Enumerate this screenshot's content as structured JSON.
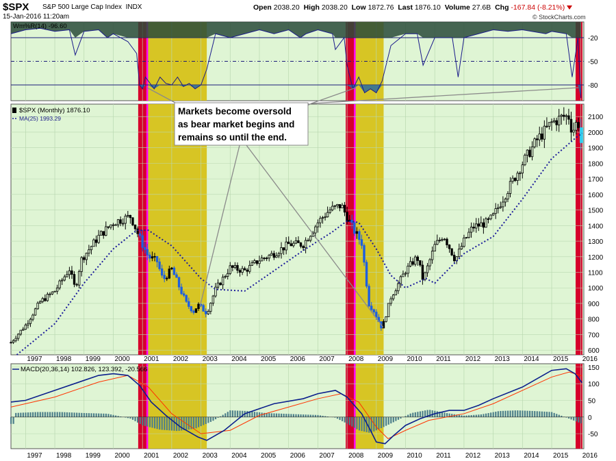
{
  "header": {
    "symbol": "$SPX",
    "name": "S&P 500 Large Cap Index",
    "exchange": "INDX",
    "date": "15-Jan-2016 11:20am",
    "open_label": "Open",
    "open": "2038.20",
    "high_label": "High",
    "high": "2038.20",
    "low_label": "Low",
    "low": "1872.76",
    "last_label": "Last",
    "last": "1876.10",
    "volume_label": "Volume",
    "volume": "27.6B",
    "chg_label": "Chg",
    "chg": "-167.84 (-8.21%)",
    "brand": "© StockCharts.com"
  },
  "colors": {
    "panel_bg": "#dff5d4",
    "bear_shade": "#d6c21a",
    "bear_marker": "#d6002b",
    "magenta": "#ff00ff",
    "ma_line": "#1a1a9a",
    "up_candle": "#000000",
    "down_candle": "#1d5fe0",
    "macd_line": "#0b1f8c",
    "signal_line": "#ff3300",
    "histogram": "#4d7f8a",
    "current_cyan": "#33ccee"
  },
  "annotation": {
    "lines": [
      "Markets become oversold",
      "as bear market begins and",
      "remains so until the end."
    ]
  },
  "chart_data": [
    {
      "type": "line",
      "panel": "Williams %R",
      "legend": "Wm%R(14) -96.60",
      "ylim": [
        -100,
        0
      ],
      "ticks": [
        -20,
        -50,
        -80
      ],
      "reference_lines": [
        -20,
        -50,
        -80
      ],
      "x": [
        1996.5,
        1997.0,
        1997.5,
        1998.0,
        1998.5,
        1998.7,
        1999.0,
        1999.5,
        1999.8,
        2000.0,
        2000.5,
        2000.8,
        2000.9,
        2001.0,
        2001.1,
        2001.2,
        2001.4,
        2001.6,
        2001.8,
        2002.0,
        2002.2,
        2002.4,
        2002.6,
        2002.8,
        2003.0,
        2003.2,
        2003.5,
        2004.0,
        2004.5,
        2005.0,
        2005.5,
        2006.0,
        2006.4,
        2006.6,
        2007.0,
        2007.5,
        2007.6,
        2007.9,
        2008.0,
        2008.2,
        2008.4,
        2008.6,
        2008.8,
        2009.0,
        2009.2,
        2009.5,
        2010.0,
        2010.4,
        2010.6,
        2011.0,
        2011.6,
        2011.8,
        2012.0,
        2012.5,
        2013.0,
        2013.5,
        2014.0,
        2014.8,
        2015.0,
        2015.5,
        2015.7,
        2015.9,
        2016.0
      ],
      "y": [
        -15,
        -10,
        -8,
        -12,
        -10,
        -42,
        -12,
        -10,
        -20,
        -15,
        -25,
        -40,
        -80,
        -85,
        -70,
        -75,
        -85,
        -70,
        -78,
        -80,
        -70,
        -82,
        -78,
        -85,
        -80,
        -60,
        -15,
        -20,
        -15,
        -10,
        -15,
        -10,
        -20,
        -15,
        -10,
        -15,
        -35,
        -20,
        -55,
        -85,
        -70,
        -90,
        -85,
        -90,
        -75,
        -30,
        -15,
        -15,
        -55,
        -20,
        -20,
        -70,
        -20,
        -15,
        -10,
        -12,
        -10,
        -15,
        -12,
        -15,
        -70,
        -20,
        -96.6
      ]
    },
    {
      "type": "bar",
      "panel": "Price (Monthly candlesticks)",
      "legend": "$SPX (Monthly) 1876.10",
      "ma_legend": "MA(25) 1993.29",
      "ylim": [
        570,
        2180
      ],
      "ticks": [
        600,
        700,
        800,
        900,
        1000,
        1100,
        1200,
        1300,
        1400,
        1500,
        1600,
        1700,
        1800,
        1900,
        2000,
        2100
      ],
      "x_ticks": [
        "1997",
        "1998",
        "1999",
        "2000",
        "2001",
        "2002",
        "2003",
        "2004",
        "2005",
        "2006",
        "2007",
        "2008",
        "2009",
        "2010",
        "2011",
        "2012",
        "2013",
        "2014",
        "2015",
        "2016"
      ],
      "xlim": [
        1996.5,
        2016.1
      ],
      "price_x": [
        1996.5,
        1997.0,
        1997.5,
        1998.0,
        1998.5,
        1998.7,
        1998.9,
        1999.5,
        2000.0,
        2000.6,
        2000.9,
        2001.2,
        2001.5,
        2001.7,
        2002.0,
        2002.5,
        2002.75,
        2002.9,
        2003.2,
        2003.5,
        2004.0,
        2004.5,
        2005.0,
        2005.5,
        2006.0,
        2006.5,
        2007.0,
        2007.4,
        2007.8,
        2008.2,
        2008.5,
        2008.75,
        2008.9,
        2009.2,
        2009.5,
        2010.0,
        2010.4,
        2010.6,
        2011.0,
        2011.3,
        2011.7,
        2012.0,
        2012.3,
        2012.8,
        2013.0,
        2013.5,
        2014.0,
        2014.5,
        2015.0,
        2015.4,
        2015.6,
        2015.7,
        2015.9,
        2016.04
      ],
      "price_y": [
        650,
        760,
        910,
        980,
        1120,
        990,
        1180,
        1330,
        1420,
        1460,
        1320,
        1200,
        1170,
        1050,
        1120,
        900,
        850,
        890,
        840,
        990,
        1130,
        1110,
        1180,
        1220,
        1280,
        1280,
        1420,
        1500,
        1530,
        1380,
        1290,
        900,
        860,
        740,
        940,
        1110,
        1200,
        1050,
        1270,
        1340,
        1180,
        1300,
        1390,
        1420,
        1460,
        1630,
        1800,
        1950,
        2060,
        2100,
        2100,
        2000,
        2080,
        1876.1
      ],
      "ma_x": [
        1996.7,
        1998.0,
        1999.0,
        2000.0,
        2000.8,
        2001.2,
        2002.0,
        2003.0,
        2003.5,
        2004.5,
        2005.5,
        2006.5,
        2007.5,
        2008.0,
        2008.4,
        2009.0,
        2009.5,
        2010.0,
        2010.7,
        2011.0,
        2012.0,
        2013.0,
        2014.0,
        2015.0,
        2015.8,
        2016.04
      ],
      "ma_y": [
        570,
        770,
        1030,
        1250,
        1370,
        1370,
        1270,
        1060,
        990,
        980,
        1110,
        1240,
        1360,
        1430,
        1420,
        1250,
        1080,
        1000,
        1060,
        1030,
        1220,
        1330,
        1570,
        1830,
        1960,
        1993.29
      ]
    },
    {
      "type": "line",
      "panel": "MACD",
      "legend": "MACD(20,36,14) 102.826, 123.392, -20.566",
      "ylim": [
        -95,
        160
      ],
      "ticks": [
        150,
        100,
        50,
        0,
        -50
      ],
      "macd_x": [
        1996.5,
        1997.0,
        1998.0,
        1999.0,
        1999.5,
        2000.0,
        2000.5,
        2000.9,
        2001.3,
        2001.8,
        2002.3,
        2002.9,
        2003.2,
        2003.8,
        2004.5,
        2005.5,
        2006.5,
        2007.0,
        2007.6,
        2008.0,
        2008.5,
        2008.8,
        2009.0,
        2009.3,
        2009.6,
        2010.0,
        2010.5,
        2011.0,
        2011.5,
        2012.0,
        2012.5,
        2013.0,
        2014.0,
        2014.8,
        2015.0,
        2015.5,
        2015.8,
        2016.04
      ],
      "macd_y": [
        45,
        50,
        80,
        110,
        125,
        130,
        125,
        95,
        45,
        5,
        -30,
        -60,
        -70,
        -40,
        10,
        40,
        55,
        70,
        80,
        60,
        10,
        -40,
        -75,
        -80,
        -55,
        -25,
        -5,
        10,
        20,
        20,
        35,
        55,
        90,
        130,
        140,
        145,
        130,
        102.826
      ],
      "signal_x": [
        1996.5,
        1998.0,
        1999.5,
        2000.5,
        2001.2,
        2002.0,
        2003.0,
        2004.0,
        2005.0,
        2006.0,
        2007.0,
        2007.8,
        2008.4,
        2009.0,
        2009.4,
        2010.0,
        2010.8,
        2012.0,
        2013.0,
        2014.0,
        2015.0,
        2015.6,
        2016.04
      ],
      "signal_y": [
        30,
        60,
        105,
        125,
        90,
        10,
        -50,
        -40,
        5,
        30,
        55,
        70,
        45,
        -30,
        -65,
        -40,
        -10,
        10,
        40,
        80,
        120,
        135,
        123.392
      ],
      "hist_x": [
        1996.6,
        1997.4,
        1998.2,
        1999.0,
        1999.8,
        2000.6,
        2001.0,
        2001.6,
        2002.2,
        2002.8,
        2003.4,
        2004.0,
        2004.6,
        2005.2,
        2005.8,
        2006.4,
        2007.0,
        2007.6,
        2008.0,
        2008.4,
        2008.8,
        2009.2,
        2009.6,
        2010.2,
        2010.8,
        2011.4,
        2012.0,
        2012.6,
        2013.2,
        2013.8,
        2014.4,
        2015.0,
        2015.6,
        2016.04
      ],
      "hist_y": [
        12,
        15,
        15,
        12,
        10,
        -5,
        -25,
        -38,
        -42,
        -35,
        -12,
        20,
        18,
        12,
        10,
        8,
        6,
        -2,
        -20,
        -40,
        -48,
        -32,
        -15,
        12,
        22,
        12,
        4,
        8,
        18,
        20,
        18,
        15,
        -5,
        -20.566
      ]
    }
  ],
  "bear_periods": [
    {
      "start": 2000.9,
      "end": 2003.2
    },
    {
      "start": 2008.0,
      "end": 2009.25
    }
  ]
}
